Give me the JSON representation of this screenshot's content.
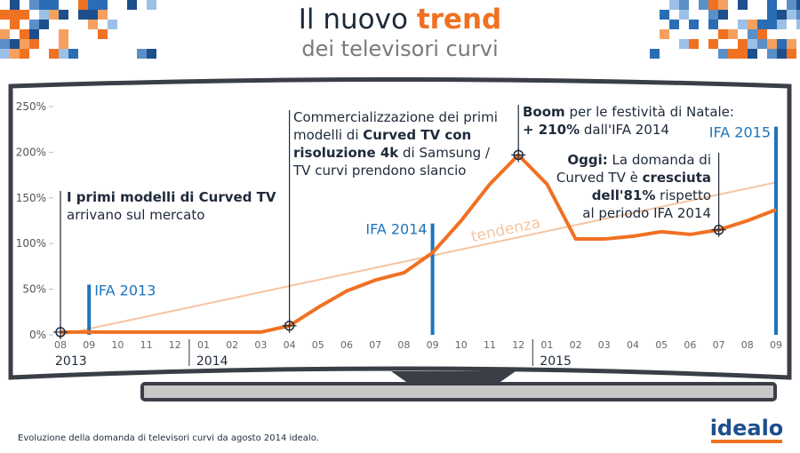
{
  "header": {
    "title_prefix": "Il nuovo",
    "title_highlight": "trend",
    "subtitle": "dei televisori curvi"
  },
  "chart_data": {
    "type": "line",
    "categories": [
      "08",
      "09",
      "10",
      "11",
      "12",
      "01",
      "02",
      "03",
      "04",
      "05",
      "06",
      "07",
      "08",
      "09",
      "10",
      "11",
      "12",
      "01",
      "02",
      "03",
      "04",
      "05",
      "06",
      "07",
      "08",
      "09"
    ],
    "years": [
      {
        "label": "2013",
        "at": 0
      },
      {
        "label": "2014",
        "at": 5
      },
      {
        "label": "2015",
        "at": 17
      }
    ],
    "series": [
      {
        "color": "#f07122",
        "values": [
          3,
          3,
          3,
          3,
          3,
          3,
          3,
          3,
          10,
          30,
          48,
          60,
          68,
          90,
          125,
          165,
          197,
          165,
          105,
          105,
          108,
          113,
          110,
          115,
          125,
          137
        ]
      }
    ],
    "markers": [
      0,
      8,
      16,
      23
    ],
    "trend": {
      "label": "tendenza",
      "start": 0,
      "end": 167,
      "color": "#f5c4a0"
    },
    "ylim": [
      0,
      250
    ],
    "yticks": [
      {
        "value": 0,
        "label": "0%"
      },
      {
        "value": 50,
        "label": "50%"
      },
      {
        "value": 100,
        "label": "100%"
      },
      {
        "value": 150,
        "label": "150%"
      },
      {
        "value": 200,
        "label": "200%"
      },
      {
        "value": 250,
        "label": "250%"
      }
    ],
    "grid": false,
    "events": [
      {
        "label": "IFA 2013",
        "at": 1,
        "height": 55
      },
      {
        "label": "IFA 2014",
        "at": 13,
        "height": 122
      },
      {
        "label": "IFA 2015",
        "at": 25,
        "height": 228
      }
    ],
    "event_color": "#1d75bc",
    "annotations": [
      {
        "at": 0,
        "lines": [
          [
            {
              "text": "I primi modelli di Curved TV",
              "bold": true
            }
          ],
          [
            {
              "text": "arrivano sul mercato",
              "bold": false
            }
          ]
        ]
      },
      {
        "at": 8,
        "lines": [
          [
            {
              "text": "Commercializzazione dei primi",
              "bold": false
            }
          ],
          [
            {
              "text": "modelli di ",
              "bold": false
            },
            {
              "text": "Curved TV con",
              "bold": true
            }
          ],
          [
            {
              "text": "risoluzione 4k",
              "bold": true
            },
            {
              "text": " di Samsung /",
              "bold": false
            }
          ],
          [
            {
              "text": "TV curvi prendono slancio",
              "bold": false
            }
          ]
        ]
      },
      {
        "at": 16,
        "lines": [
          [
            {
              "text": "Boom",
              "bold": true
            },
            {
              "text": " per le festività di Natale:",
              "bold": false
            }
          ],
          [
            {
              "text": "+ 210%",
              "bold": true
            },
            {
              "text": " dall'IFA 2014",
              "bold": false
            }
          ]
        ]
      },
      {
        "at": 23,
        "lines": [
          [
            {
              "text": "Oggi:",
              "bold": true
            },
            {
              "text": " La domanda di",
              "bold": false
            }
          ],
          [
            {
              "text": "Curved TV è ",
              "bold": false
            },
            {
              "text": "cresciuta",
              "bold": true
            }
          ],
          [
            {
              "text": "dell'81%",
              "bold": true
            },
            {
              "text": " rispetto",
              "bold": false
            }
          ],
          [
            {
              "text": "al periodo IFA 2014",
              "bold": false
            }
          ]
        ]
      }
    ]
  },
  "footer": {
    "caption": "Evoluzione della domanda di televisori curvi da agosto 2014 idealo.",
    "logo": "idealo"
  }
}
